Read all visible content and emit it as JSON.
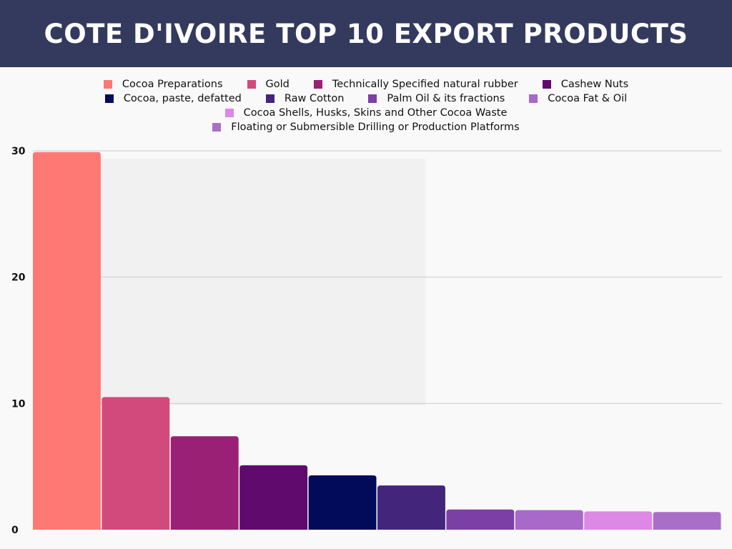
{
  "title": "COTE D'IVOIRE TOP 10 EXPORT PRODUCTS",
  "colors": {
    "header_bg": "#343a5e",
    "page_bg": "#f9f9f9",
    "gridline": "#cccccc"
  },
  "chart_data": {
    "type": "bar",
    "title": "COTE D'IVOIRE TOP 10 EXPORT PRODUCTS",
    "xlabel": "",
    "ylabel": "",
    "ylim": [
      0,
      30
    ],
    "y_ticks": [
      0,
      10,
      20,
      30
    ],
    "grid": true,
    "legend_position": "top",
    "categories": [
      "Cocoa Preparations",
      "Gold",
      "Technically Specified natural rubber",
      "Cashew Nuts",
      "Cocoa, paste, defatted",
      "Raw Cotton",
      "Palm Oil & its fractions",
      "Cocoa Fat & Oil",
      "Cocoa Shells, Husks, Skins and Other Cocoa Waste",
      "Floating or Submersible Drilling or Production Platforms"
    ],
    "values": [
      29.9,
      10.5,
      7.4,
      5.1,
      4.3,
      3.5,
      1.6,
      1.55,
      1.45,
      1.4
    ],
    "colors": [
      "#fe7874",
      "#d24a7b",
      "#9a2076",
      "#600a6d",
      "#020a5a",
      "#43257c",
      "#7b3fa5",
      "#a869c8",
      "#dd88e4",
      "#a96fc8"
    ]
  }
}
